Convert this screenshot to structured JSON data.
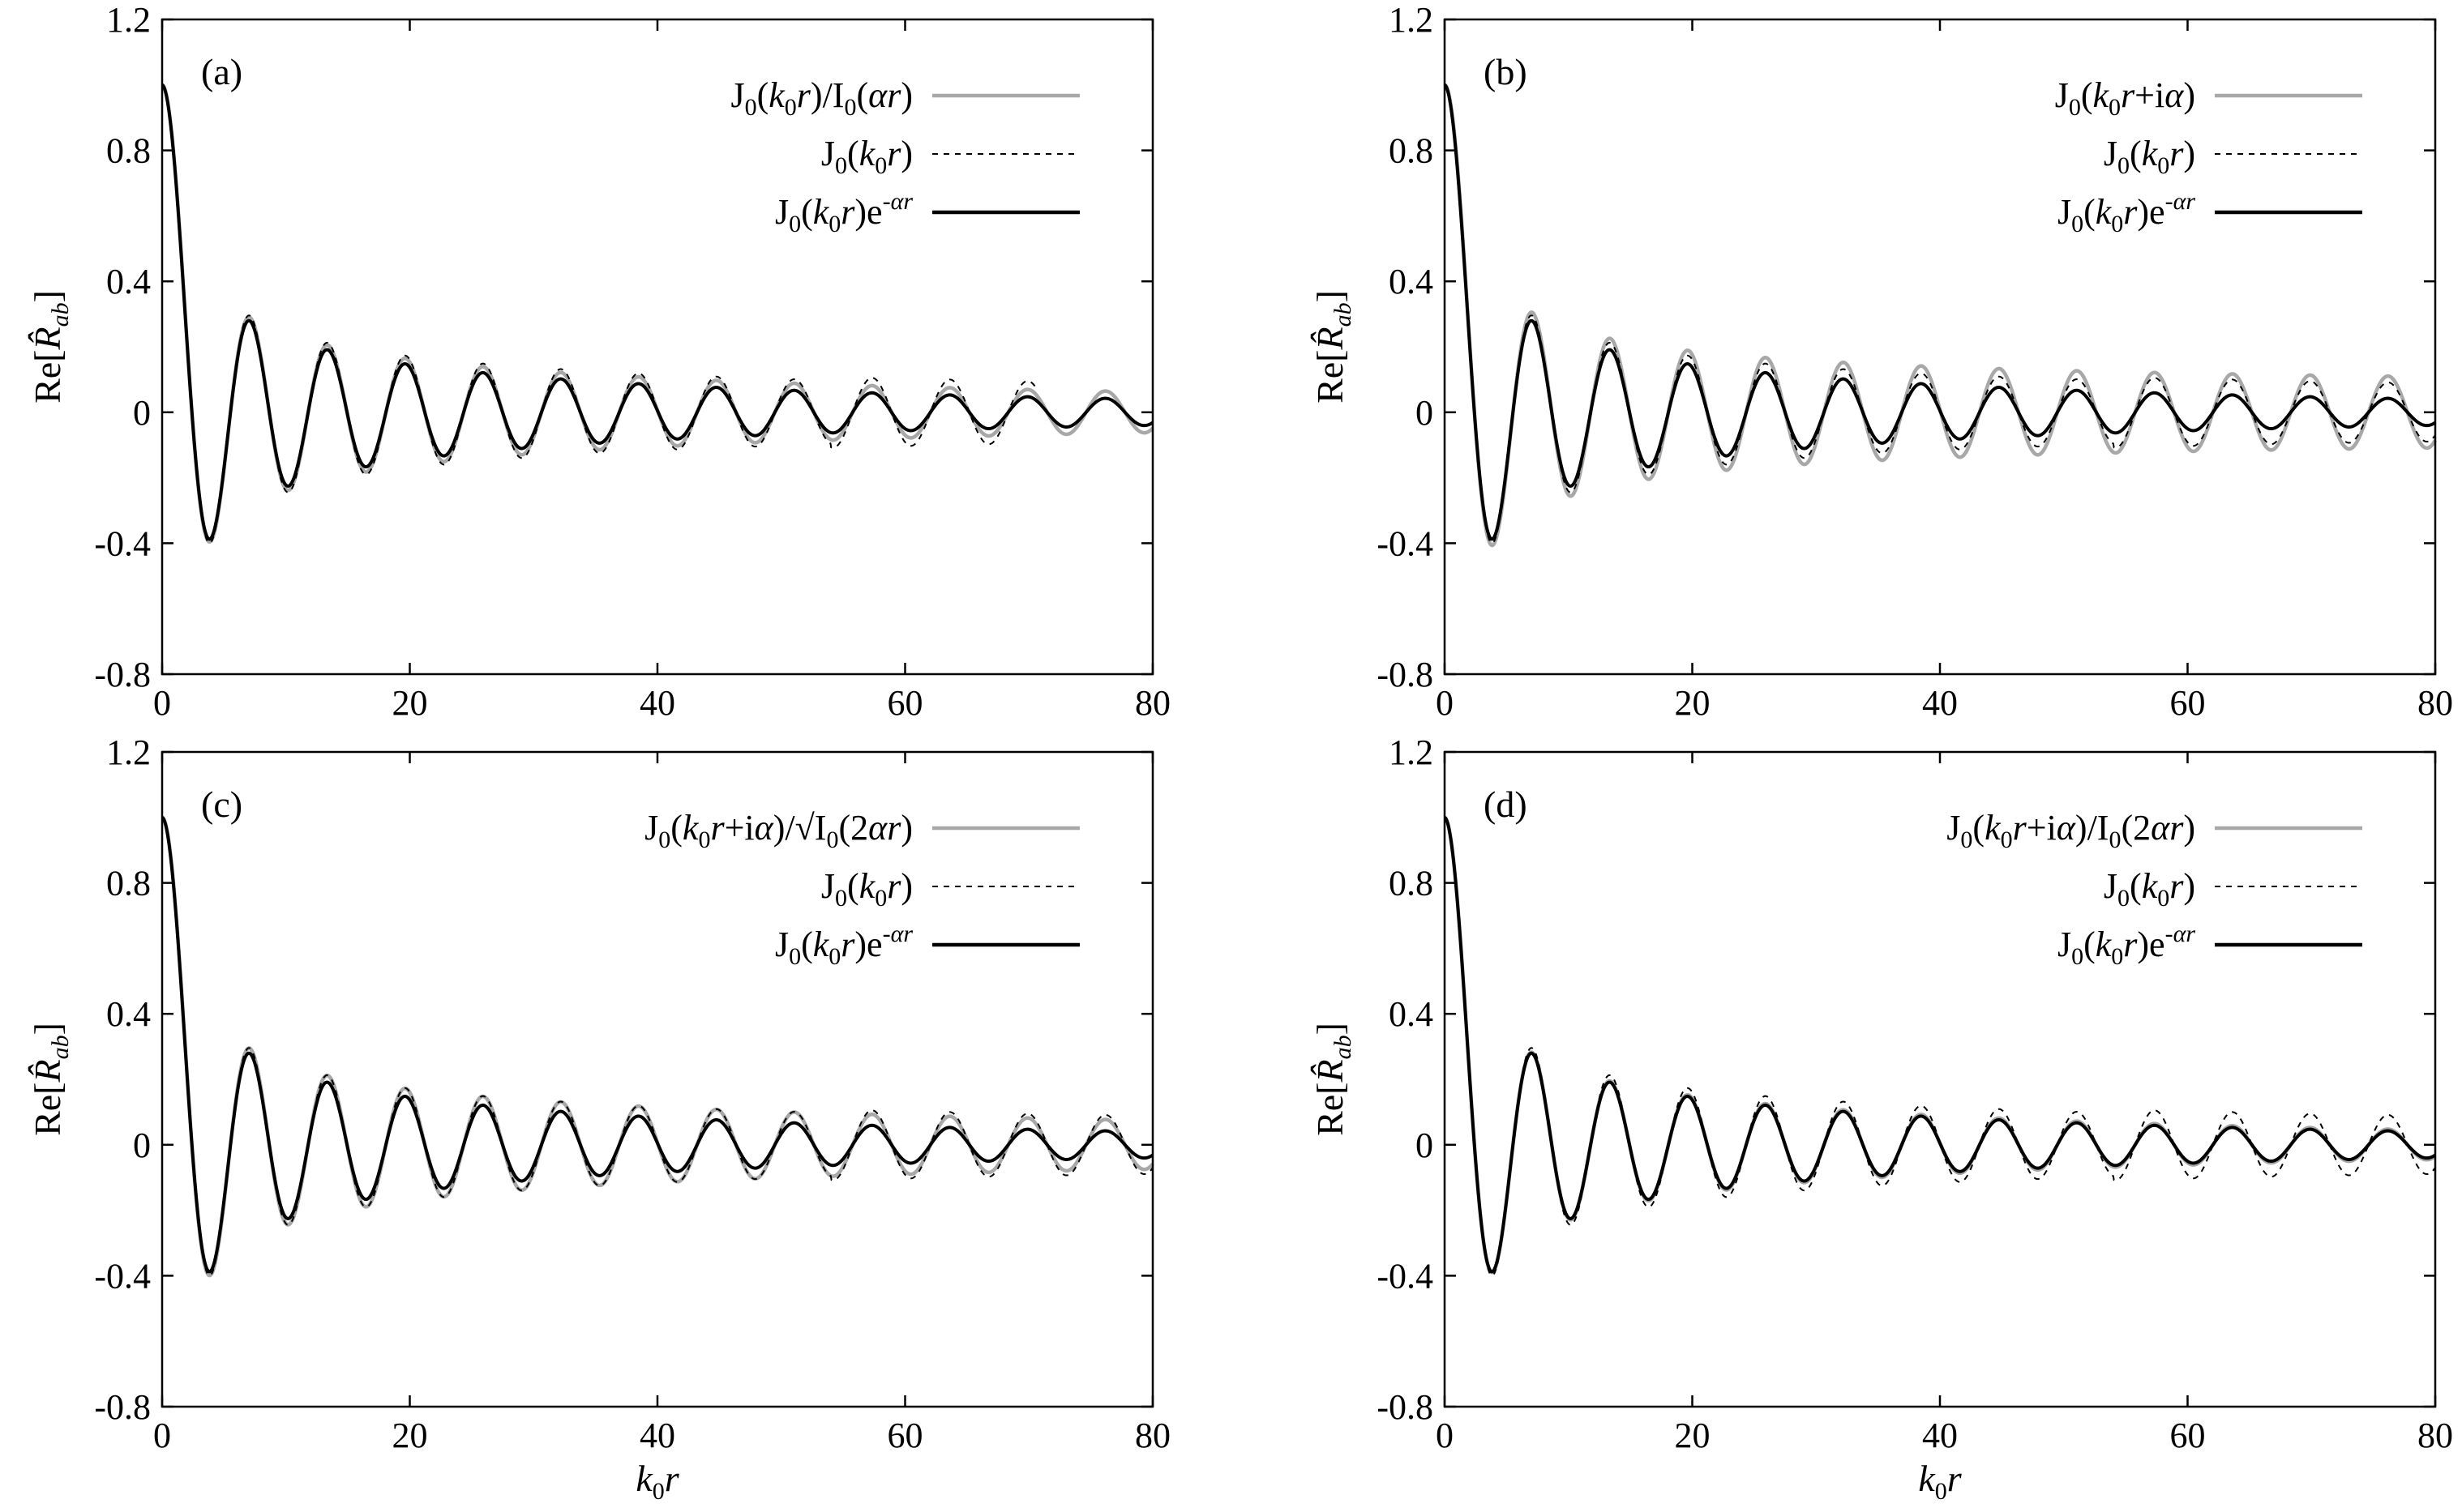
{
  "chart_data": [
    {
      "type": "line",
      "panel": "(a)",
      "xlabel": "",
      "ylabel": "Re[R̂ab]",
      "xlim": [
        0,
        80
      ],
      "ylim": [
        -0.8,
        1.2
      ],
      "xticks": [
        "0",
        "20",
        "40",
        "60",
        "80"
      ],
      "yticks": [
        "-0.8",
        "-0.4",
        "0",
        "0.4",
        "0.8",
        "1.2"
      ],
      "legend_position": "top-right",
      "series": [
        {
          "name": "J0(k0r)/I0(αr)",
          "label": "J₀(k₀r)/I₀(αr)",
          "function": "j0_over_i0",
          "color": "#a8a8a8",
          "style": "solid"
        },
        {
          "name": "J0(k0r)",
          "label": "J₀(k₀r)",
          "function": "j0_pure",
          "color": "#000000",
          "style": "dashed"
        },
        {
          "name": "J0(k0r)e^-αr",
          "label": "J₀(k₀r)e⁻ᵅʳ",
          "function": "j0_exp",
          "color": "#000000",
          "style": "solid"
        }
      ]
    },
    {
      "type": "line",
      "panel": "(b)",
      "xlabel": "",
      "ylabel": "Re[R̂ab]",
      "xlim": [
        0,
        80
      ],
      "ylim": [
        -0.8,
        1.2
      ],
      "xticks": [
        "0",
        "20",
        "40",
        "60",
        "80"
      ],
      "yticks": [
        "-0.8",
        "-0.4",
        "0",
        "0.4",
        "0.8",
        "1.2"
      ],
      "legend_position": "top-right",
      "series": [
        {
          "name": "J0(k0r+iα)",
          "label": "J₀(k₀r+iα)",
          "function": "j0_complex",
          "color": "#a8a8a8",
          "style": "solid"
        },
        {
          "name": "J0(k0r)",
          "label": "J₀(k₀r)",
          "function": "j0_pure",
          "color": "#000000",
          "style": "dashed"
        },
        {
          "name": "J0(k0r)e^-αr",
          "label": "J₀(k₀r)e⁻ᵅʳ",
          "function": "j0_exp",
          "color": "#000000",
          "style": "solid"
        }
      ]
    },
    {
      "type": "line",
      "panel": "(c)",
      "xlabel": "k0r",
      "ylabel": "Re[R̂ab]",
      "xlim": [
        0,
        80
      ],
      "ylim": [
        -0.8,
        1.2
      ],
      "xticks": [
        "0",
        "20",
        "40",
        "60",
        "80"
      ],
      "yticks": [
        "-0.8",
        "-0.4",
        "0",
        "0.4",
        "0.8",
        "1.2"
      ],
      "legend_position": "top-right",
      "series": [
        {
          "name": "J0(k0r+iα)/√I0(2αr)",
          "label": "J₀(k₀r+iα)/√I₀(2αr)",
          "function": "j0_sqrt",
          "color": "#a8a8a8",
          "style": "solid"
        },
        {
          "name": "J0(k0r)",
          "label": "J₀(k₀r)",
          "function": "j0_pure",
          "color": "#000000",
          "style": "dashed"
        },
        {
          "name": "J0(k0r)e^-αr",
          "label": "J₀(k₀r)e⁻ᵅʳ",
          "function": "j0_exp",
          "color": "#000000",
          "style": "solid"
        }
      ]
    },
    {
      "type": "line",
      "panel": "(d)",
      "xlabel": "k0r",
      "ylabel": "Re[R̂ab]",
      "xlim": [
        0,
        80
      ],
      "ylim": [
        -0.8,
        1.2
      ],
      "xticks": [
        "0",
        "20",
        "40",
        "60",
        "80"
      ],
      "yticks": [
        "-0.8",
        "-0.4",
        "0",
        "0.4",
        "0.8",
        "1.2"
      ],
      "legend_position": "top-right",
      "series": [
        {
          "name": "J0(k0r+iα)/I0(2αr)",
          "label": "J₀(k₀r+iα)/I₀(2αr)",
          "function": "j0_i2",
          "color": "#a8a8a8",
          "style": "solid"
        },
        {
          "name": "J0(k0r)",
          "label": "J₀(k₀r)",
          "function": "j0_pure",
          "color": "#000000",
          "style": "dashed"
        },
        {
          "name": "J0(k0r)e^-αr",
          "label": "J₀(k₀r)e⁻ᵅʳ",
          "function": "j0_exp",
          "color": "#000000",
          "style": "solid"
        }
      ]
    }
  ]
}
